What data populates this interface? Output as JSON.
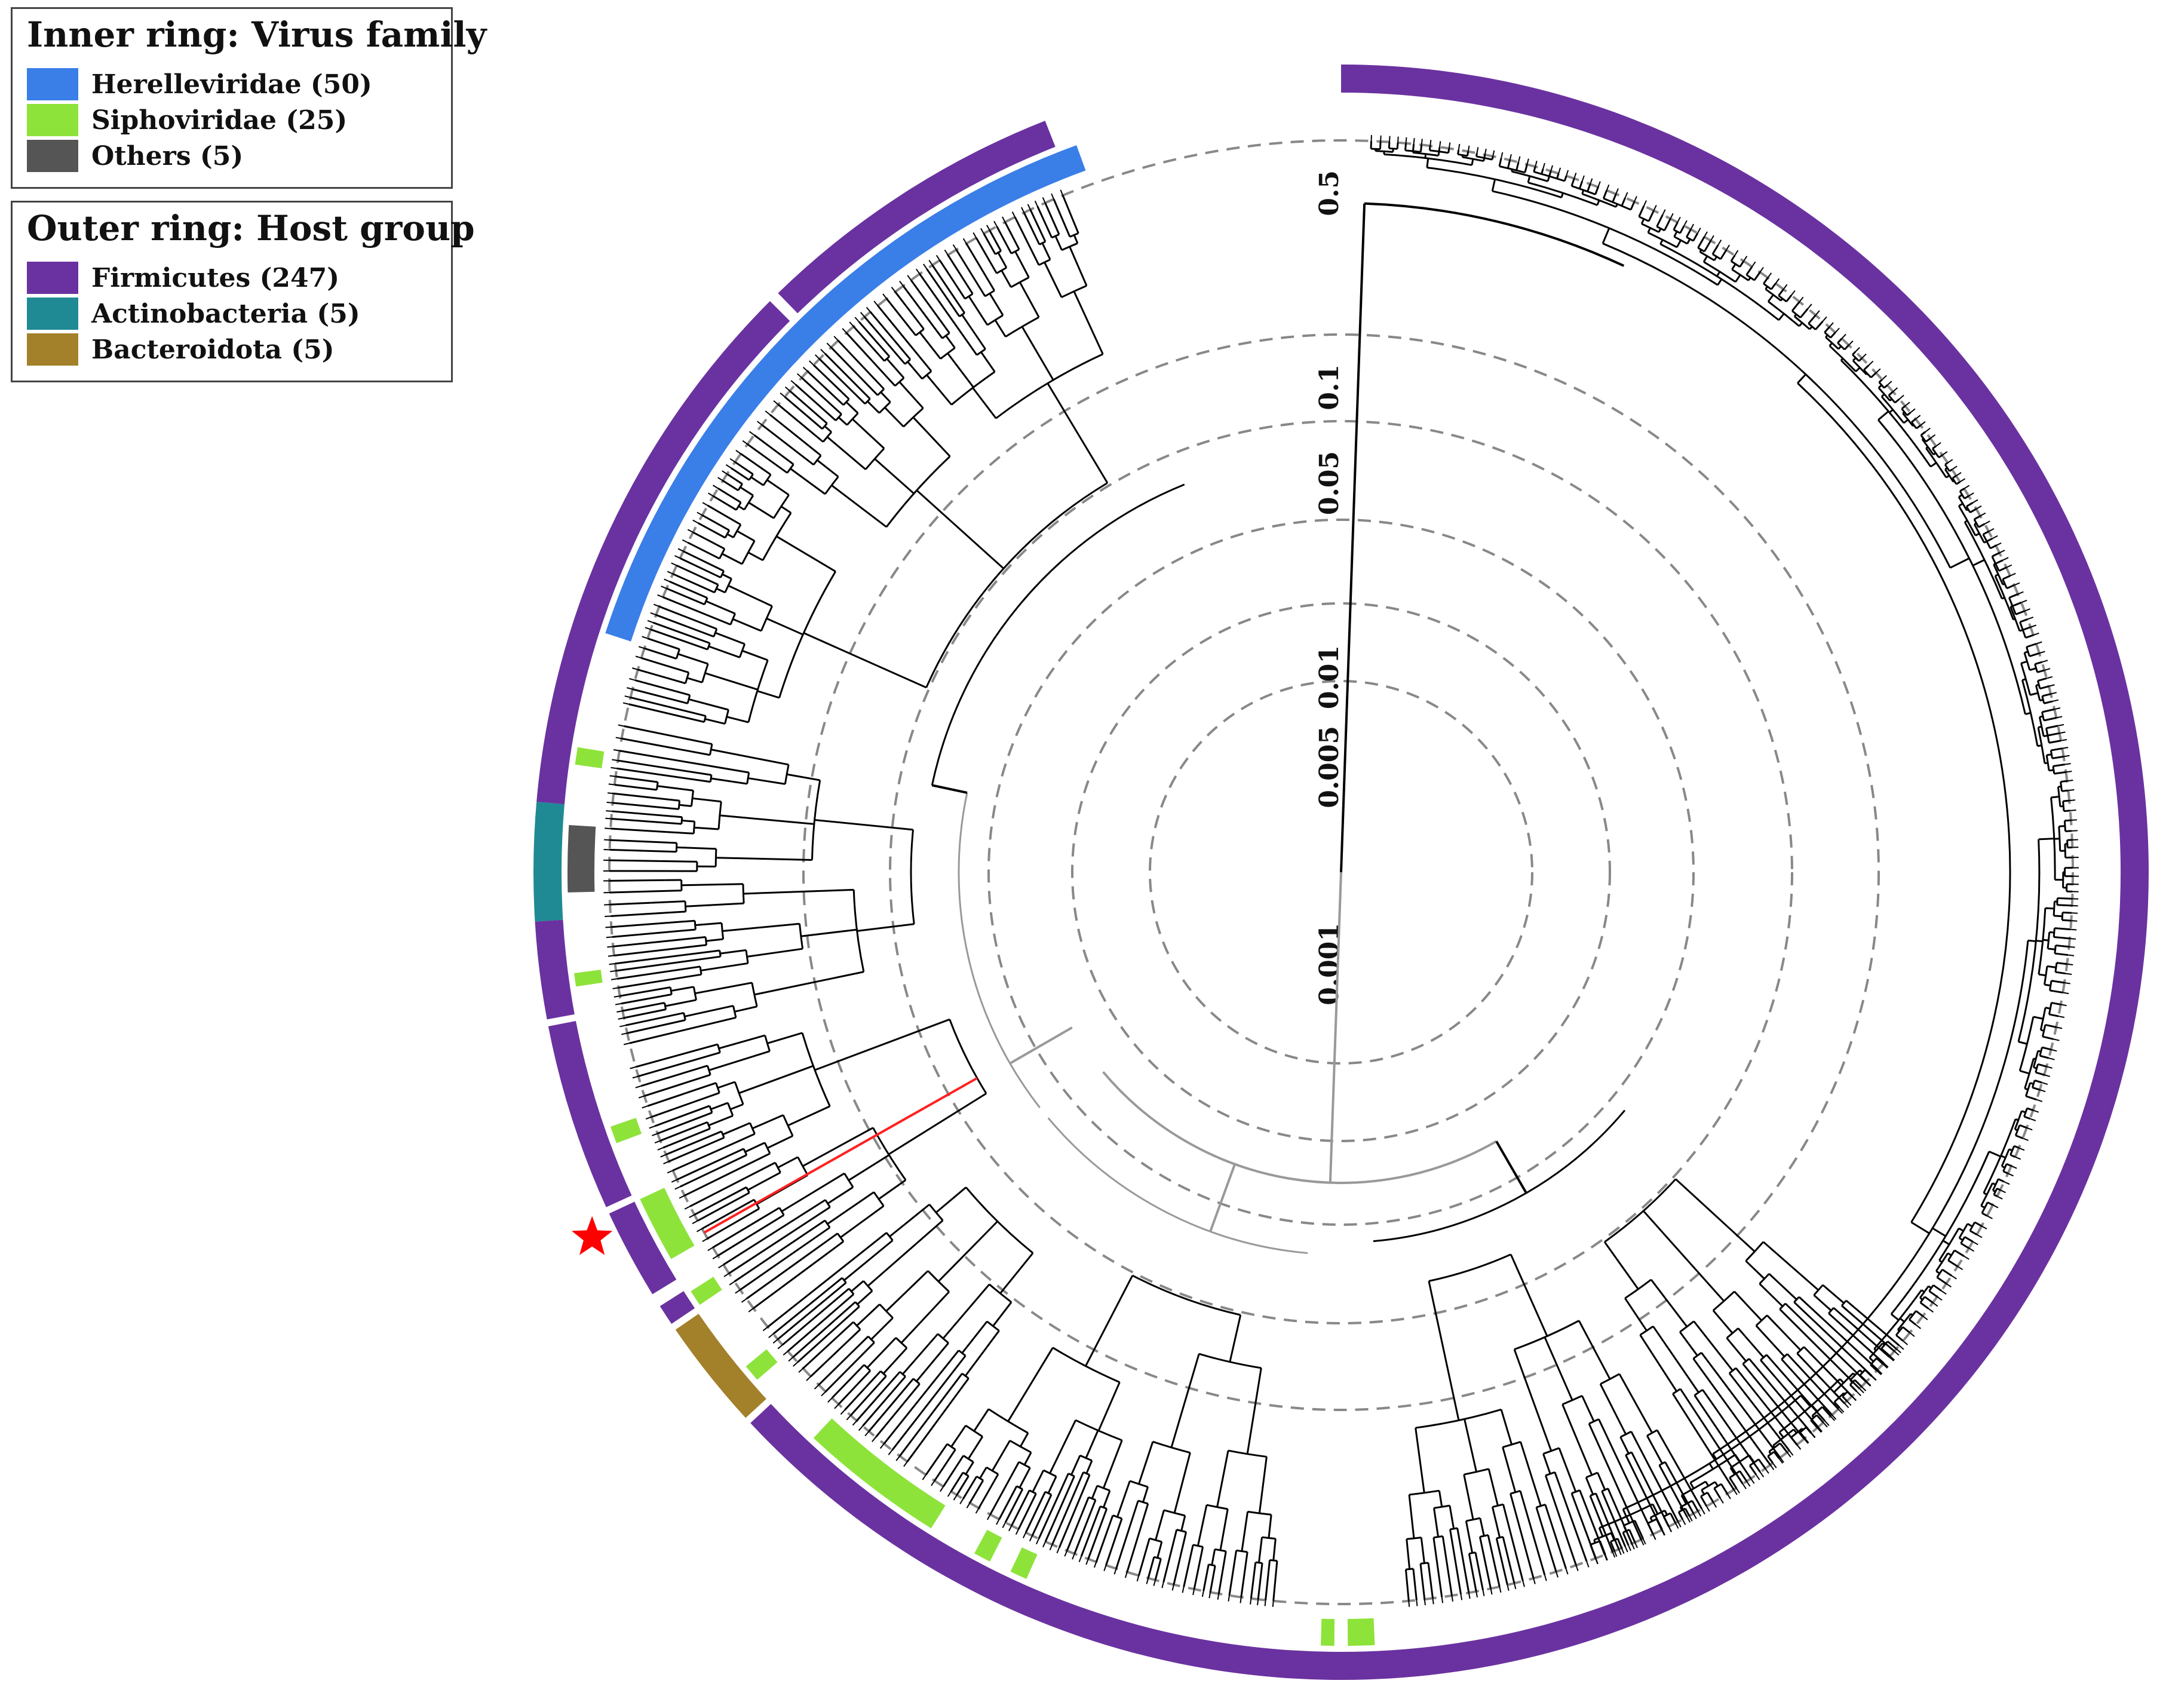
{
  "legend_inner": {
    "title": "Inner ring: Virus family",
    "items": [
      {
        "label": "Herelleviridae (50)",
        "color": "#3a7ee8"
      },
      {
        "label": "Siphoviridae (25)",
        "color": "#8ee33a"
      },
      {
        "label": "Others (5)",
        "color": "#555555"
      }
    ]
  },
  "legend_outer": {
    "title": "Outer ring: Host group",
    "items": [
      {
        "label": "Firmicutes (247)",
        "color": "#6a32a0"
      },
      {
        "label": "Actinobacteria (5)",
        "color": "#1f8a94"
      },
      {
        "label": "Bacteroidota (5)",
        "color": "#a3802a"
      }
    ]
  },
  "scale_labels": [
    "0.5",
    "0.1",
    "0.05",
    "0.01",
    "0.005",
    "0.001"
  ],
  "highlight": {
    "marker": "star",
    "marker_color": "#ff0000",
    "branch_color": "#ff2020"
  }
}
